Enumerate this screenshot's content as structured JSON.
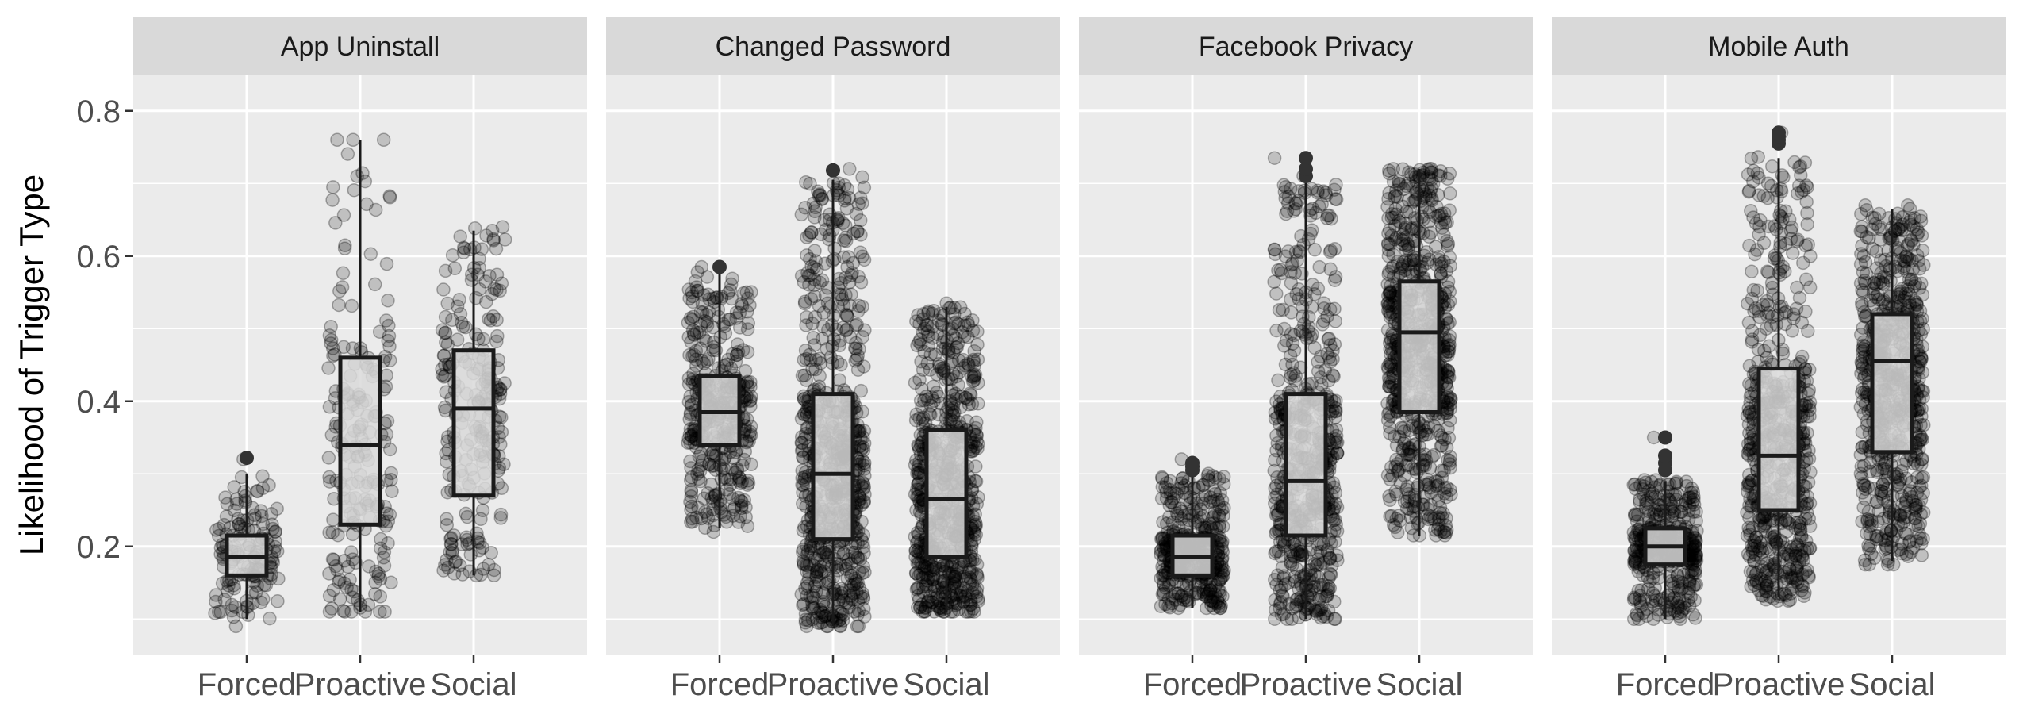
{
  "chart_data": {
    "type": "box",
    "ylabel": "Likelihood of Trigger Type",
    "xlabel": "",
    "ylim": [
      0.05,
      0.85
    ],
    "yticks": [
      0.2,
      0.4,
      0.6,
      0.8
    ],
    "grid": true,
    "categories": [
      "Forced",
      "Proactive",
      "Social"
    ],
    "panels": [
      {
        "title": "App Uninstall",
        "groups": [
          {
            "category": "Forced",
            "q1": 0.16,
            "median": 0.185,
            "q3": 0.215,
            "whisker_low": 0.1,
            "whisker_high": 0.3,
            "points_min": 0.09,
            "points_max": 0.32,
            "n_points": 150,
            "outliers": [
              0.322
            ]
          },
          {
            "category": "Proactive",
            "q1": 0.23,
            "median": 0.34,
            "q3": 0.46,
            "whisker_low": 0.11,
            "whisker_high": 0.76,
            "points_min": 0.11,
            "points_max": 0.76,
            "n_points": 210,
            "outliers": []
          },
          {
            "category": "Social",
            "q1": 0.27,
            "median": 0.39,
            "q3": 0.47,
            "whisker_low": 0.16,
            "whisker_high": 0.635,
            "points_min": 0.16,
            "points_max": 0.64,
            "n_points": 240,
            "outliers": []
          }
        ]
      },
      {
        "title": "Changed Password",
        "groups": [
          {
            "category": "Forced",
            "q1": 0.34,
            "median": 0.385,
            "q3": 0.435,
            "whisker_low": 0.225,
            "whisker_high": 0.575,
            "points_min": 0.22,
            "points_max": 0.585,
            "n_points": 420,
            "outliers": [
              0.585
            ]
          },
          {
            "category": "Proactive",
            "q1": 0.21,
            "median": 0.3,
            "q3": 0.41,
            "whisker_low": 0.09,
            "whisker_high": 0.705,
            "points_min": 0.09,
            "points_max": 0.72,
            "n_points": 760,
            "outliers": [
              0.718
            ]
          },
          {
            "category": "Social",
            "q1": 0.185,
            "median": 0.265,
            "q3": 0.36,
            "whisker_low": 0.11,
            "whisker_high": 0.53,
            "points_min": 0.11,
            "points_max": 0.535,
            "n_points": 700,
            "outliers": []
          }
        ]
      },
      {
        "title": "Facebook Privacy",
        "groups": [
          {
            "category": "Forced",
            "q1": 0.16,
            "median": 0.185,
            "q3": 0.215,
            "whisker_low": 0.115,
            "whisker_high": 0.3,
            "points_min": 0.115,
            "points_max": 0.32,
            "n_points": 420,
            "outliers": [
              0.305,
              0.31,
              0.315
            ]
          },
          {
            "category": "Proactive",
            "q1": 0.215,
            "median": 0.29,
            "q3": 0.41,
            "whisker_low": 0.1,
            "whisker_high": 0.705,
            "points_min": 0.1,
            "points_max": 0.735,
            "n_points": 620,
            "outliers": [
              0.71,
              0.72,
              0.735
            ]
          },
          {
            "category": "Social",
            "q1": 0.385,
            "median": 0.495,
            "q3": 0.565,
            "whisker_low": 0.215,
            "whisker_high": 0.72,
            "points_min": 0.215,
            "points_max": 0.72,
            "n_points": 760,
            "outliers": []
          }
        ]
      },
      {
        "title": "Mobile Auth",
        "groups": [
          {
            "category": "Forced",
            "q1": 0.175,
            "median": 0.2,
            "q3": 0.225,
            "whisker_low": 0.1,
            "whisker_high": 0.29,
            "points_min": 0.1,
            "points_max": 0.35,
            "n_points": 420,
            "outliers": [
              0.305,
              0.315,
              0.325,
              0.35
            ]
          },
          {
            "category": "Proactive",
            "q1": 0.25,
            "median": 0.325,
            "q3": 0.445,
            "whisker_low": 0.13,
            "whisker_high": 0.735,
            "points_min": 0.125,
            "points_max": 0.77,
            "n_points": 640,
            "outliers": [
              0.755,
              0.76,
              0.765,
              0.77
            ]
          },
          {
            "category": "Social",
            "q1": 0.33,
            "median": 0.455,
            "q3": 0.52,
            "whisker_low": 0.18,
            "whisker_high": 0.665,
            "points_min": 0.175,
            "points_max": 0.67,
            "n_points": 700,
            "outliers": []
          }
        ]
      }
    ]
  },
  "colors": {
    "panel_background": "#ebebeb",
    "strip_background": "#d9d9d9",
    "grid_major": "#ffffff",
    "point_fill": "#000000",
    "box_fill": "#d9d9d9",
    "box_stroke": "#1a1a1a"
  }
}
